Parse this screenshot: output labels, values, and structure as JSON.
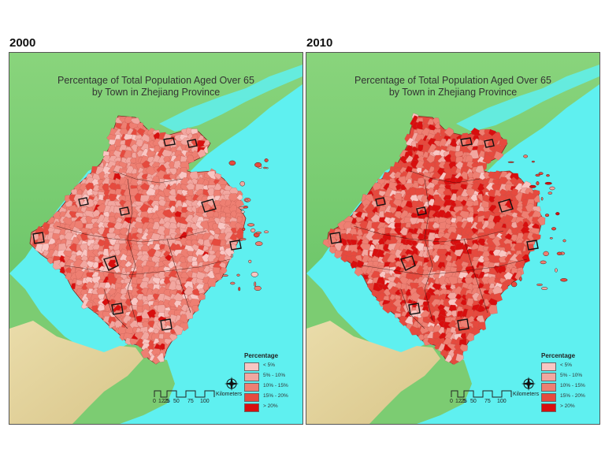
{
  "panels": [
    {
      "year": "2000",
      "title_line1": "Percentage of Total Population Aged Over 65",
      "title_line2": "by Town in Zhejiang Province",
      "fill_intensity": "moderate"
    },
    {
      "year": "2010",
      "title_line1": "Percentage of Total Population Aged Over 65",
      "title_line2": "by Town in Zhejiang Province",
      "fill_intensity": "high"
    }
  ],
  "legend": {
    "title": "Percentage",
    "items": [
      {
        "label": "< 5%",
        "color": "#f9c6c3"
      },
      {
        "label": "5% - 10%",
        "color": "#f2a7a0"
      },
      {
        "label": "10% - 15%",
        "color": "#ee7f72"
      },
      {
        "label": "15% - 20%",
        "color": "#e64a3e"
      },
      {
        "label": "> 20%",
        "color": "#d80e0e"
      }
    ]
  },
  "scale": {
    "ticks": [
      "0",
      "12.5",
      "25",
      "50",
      "75",
      "100"
    ],
    "unit": "Kilometers"
  },
  "colors": {
    "sea": "#5ff0f0",
    "land": "#86d27a",
    "mountain": "#e7d9a4"
  }
}
